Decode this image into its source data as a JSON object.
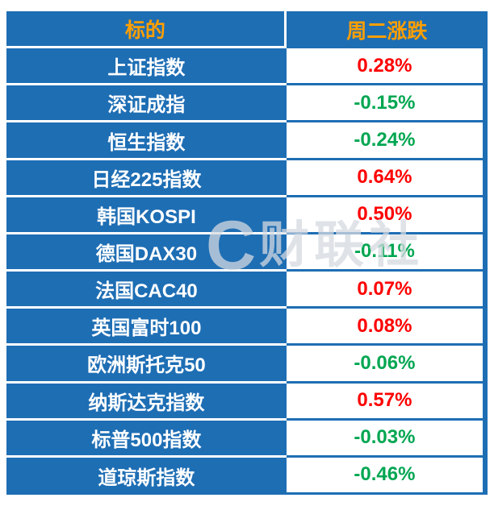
{
  "chart_data": {
    "type": "table",
    "columns": [
      "标的",
      "周二涨跌"
    ],
    "rows": [
      {
        "name": "上证指数",
        "change": "0.28%",
        "direction": "up"
      },
      {
        "name": "深证成指",
        "change": "-0.15%",
        "direction": "down"
      },
      {
        "name": "恒生指数",
        "change": "-0.24%",
        "direction": "down"
      },
      {
        "name": "日经225指数",
        "change": "0.64%",
        "direction": "up"
      },
      {
        "name": "韩国KOSPI",
        "change": "0.50%",
        "direction": "up"
      },
      {
        "name": "德国DAX30",
        "change": "-0.11%",
        "direction": "down"
      },
      {
        "name": "法国CAC40",
        "change": "0.07%",
        "direction": "up"
      },
      {
        "name": "英国富时100",
        "change": "0.08%",
        "direction": "up"
      },
      {
        "name": "欧洲斯托克50",
        "change": "-0.06%",
        "direction": "down"
      },
      {
        "name": "纳斯达克指数",
        "change": "0.57%",
        "direction": "up"
      },
      {
        "name": "标普500指数",
        "change": "-0.03%",
        "direction": "down"
      },
      {
        "name": "道琼斯指数",
        "change": "-0.46%",
        "direction": "down"
      }
    ]
  },
  "watermark": {
    "logo": "C",
    "text": "财联社"
  },
  "colors": {
    "panel_blue": "#1e6eb4",
    "header_orange": "#ff9f00",
    "name_text": "#ffffff",
    "up_red": "#fe0000",
    "down_green": "#00a651",
    "value_bg": "#ffffff"
  }
}
